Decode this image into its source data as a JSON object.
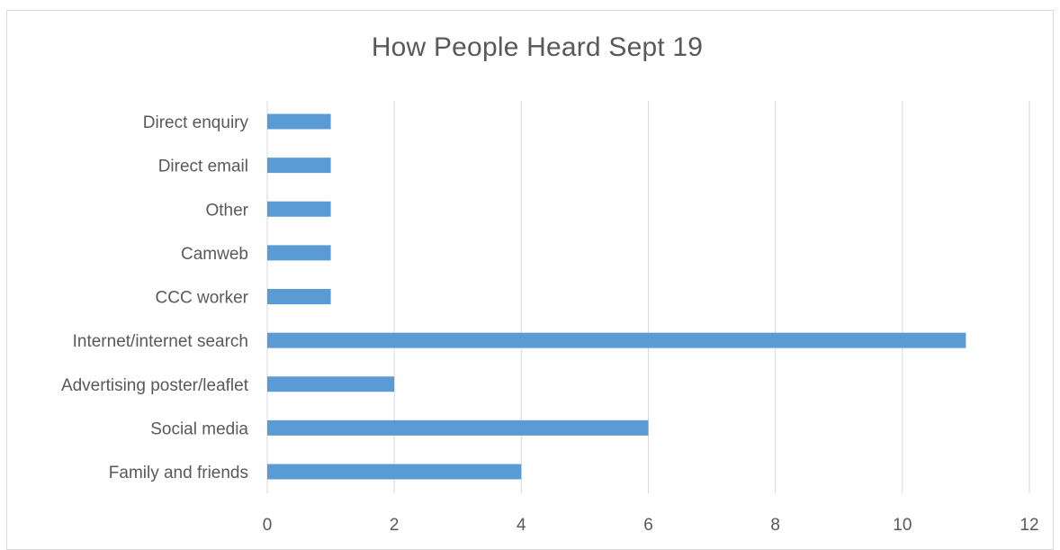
{
  "chart_data": {
    "type": "bar",
    "orientation": "horizontal",
    "title": "How People Heard Sept 19",
    "categories": [
      "Family and friends",
      "Social media",
      "Advertising poster/leaflet",
      "Internet/internet search",
      "CCC worker",
      "Camweb",
      "Other",
      "Direct email",
      "Direct enquiry"
    ],
    "values": [
      4,
      6,
      2,
      11,
      1,
      1,
      1,
      1,
      1
    ],
    "xlim": [
      0,
      12
    ],
    "x_ticks": [
      0,
      2,
      4,
      6,
      8,
      10,
      12
    ],
    "grid": true,
    "bar_color": "#5b9bd5",
    "grid_color": "#d9d9d9",
    "text_color": "#595959"
  }
}
